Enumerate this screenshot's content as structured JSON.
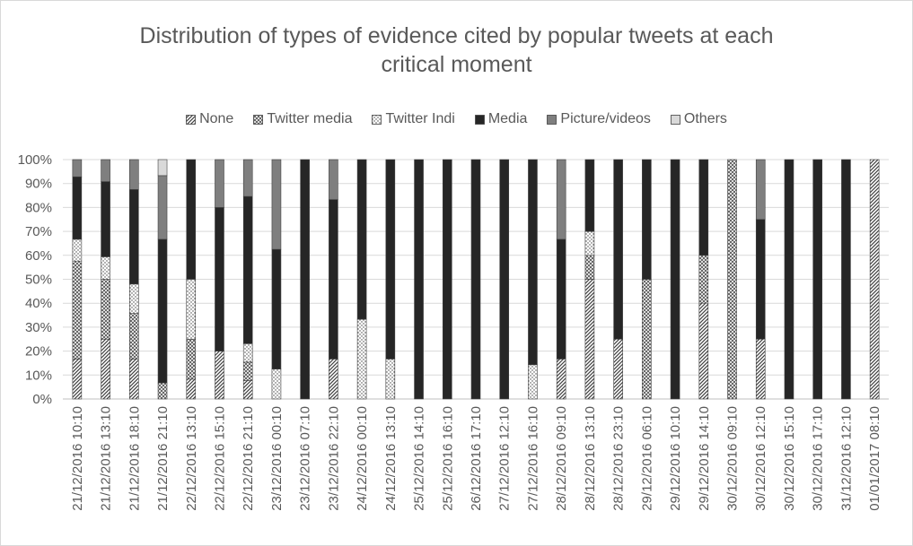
{
  "chart_data": {
    "type": "bar",
    "stacked": true,
    "title": "Distribution of types of evidence cited by popular tweets at each critical moment",
    "title_lines": [
      "Distribution of types of evidence cited by popular tweets at each",
      "critical moment"
    ],
    "xlabel": "",
    "ylabel": "",
    "ylim": [
      0,
      100
    ],
    "yticks": [
      "0%",
      "10%",
      "20%",
      "30%",
      "40%",
      "50%",
      "60%",
      "70%",
      "80%",
      "90%",
      "100%"
    ],
    "grid": true,
    "legend_position": "top",
    "categories": [
      "21/12/2016 10:10",
      "21/12/2016 13:10",
      "21/12/2016 18:10",
      "21/12/2016 21:10",
      "22/12/2016 13:10",
      "22/12/2016 15:10",
      "22/12/2016 21:10",
      "23/12/2016 00:10",
      "23/12/2016 07:10",
      "23/12/2016 22:10",
      "24/12/2016 00:10",
      "24/12/2016 13:10",
      "25/12/2016 14:10",
      "25/12/2016 16:10",
      "26/12/2016 17:10",
      "27/12/2016 12:10",
      "27/12/2016 16:10",
      "28/12/2016 09:10",
      "28/12/2016 13:10",
      "28/12/2016 23:10",
      "29/12/2016 06:10",
      "29/12/2016 10:10",
      "29/12/2016 14:10",
      "30/12/2016 09:10",
      "30/12/2016 12:10",
      "30/12/2016 15:10",
      "30/12/2016 17:10",
      "31/12/2016 12:10",
      "01/01/2017 08:10"
    ],
    "series": [
      {
        "name": "None",
        "pattern": "diag-dense",
        "values": [
          16.7,
          25,
          16.7,
          0,
          8.3,
          20,
          7.7,
          0,
          0,
          16.7,
          0,
          0,
          0,
          0,
          0,
          0,
          0,
          16.7,
          50,
          25,
          0,
          0,
          40,
          0,
          25,
          0,
          0,
          0,
          100
        ]
      },
      {
        "name": "Twitter media",
        "pattern": "crosshatch",
        "values": [
          40.9,
          25,
          19,
          6.7,
          16.7,
          0,
          7.7,
          0,
          0,
          0,
          0,
          0,
          0,
          0,
          0,
          0,
          0,
          0,
          10,
          0,
          50,
          0,
          20,
          100,
          0,
          0,
          0,
          0,
          0
        ]
      },
      {
        "name": "Twitter Indi",
        "pattern": "dots",
        "values": [
          9.1,
          9.4,
          12.3,
          0,
          25,
          0,
          7.7,
          12.5,
          0,
          0,
          33.3,
          16.7,
          0,
          0,
          0,
          0,
          14.3,
          0,
          10,
          0,
          0,
          0,
          0,
          0,
          0,
          0,
          0,
          0,
          0
        ]
      },
      {
        "name": "Media",
        "pattern": "solid-dark",
        "values": [
          26.1,
          31.4,
          39.5,
          60,
          50,
          60,
          61.5,
          50,
          100,
          66.6,
          66.7,
          83.3,
          100,
          100,
          100,
          100,
          85.7,
          50,
          30,
          75,
          50,
          100,
          40,
          0,
          50,
          100,
          100,
          100,
          0
        ]
      },
      {
        "name": "Picture/videos",
        "pattern": "solid-grey",
        "values": [
          7.2,
          9.2,
          12.5,
          26.6,
          0,
          20,
          15.4,
          37.5,
          0,
          16.7,
          0,
          0,
          0,
          0,
          0,
          0,
          0,
          33.3,
          0,
          0,
          0,
          0,
          0,
          0,
          25,
          0,
          0,
          0,
          0
        ]
      },
      {
        "name": "Others",
        "pattern": "solid-light",
        "values": [
          0,
          0,
          0,
          6.7,
          0,
          0,
          0,
          0,
          0,
          0,
          0,
          0,
          0,
          0,
          0,
          0,
          0,
          0,
          0,
          0,
          0,
          0,
          0,
          0,
          0,
          0,
          0,
          0,
          0
        ]
      }
    ]
  }
}
